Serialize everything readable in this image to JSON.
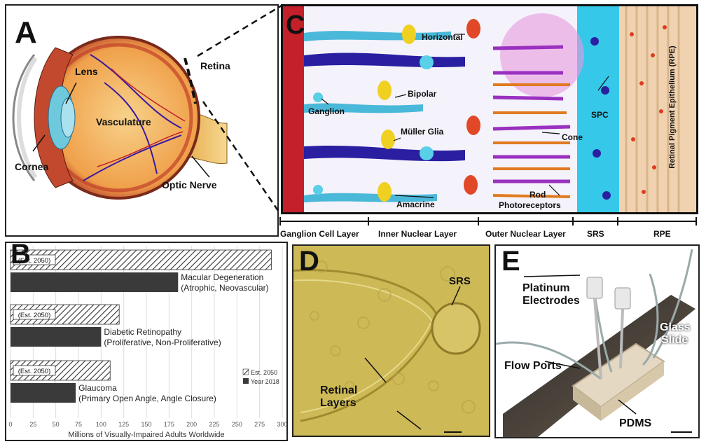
{
  "panels": {
    "a": {
      "letter": "A",
      "labels": {
        "lens": "Lens",
        "retina": "Retina",
        "vasculature": "Vasculature",
        "cornea": "Cornea",
        "optic_nerve": "Optic Nerve"
      }
    },
    "c": {
      "letter": "C",
      "labels": {
        "horizontal": "Horizontal",
        "ganglion": "Ganglion",
        "bipolar": "Bipolar",
        "muller": "Müller Glia",
        "amacrine": "Amacrine",
        "rod": "Rod",
        "photoreceptors": "Photoreceptors",
        "cone": "Cone",
        "spc": "SPC",
        "rpe_vertical": "Retinal Pigment Epithelium (RPE)"
      },
      "layers": [
        "Ganglion Cell Layer",
        "Inner Nuclear Layer",
        "Outer Nuclear Layer",
        "SRS",
        "RPE"
      ]
    },
    "b": {
      "letter": "B"
    },
    "d": {
      "letter": "D",
      "labels": {
        "srs": "SRS",
        "retinal": "Retinal",
        "layers": "Layers"
      }
    },
    "e": {
      "letter": "E",
      "labels": {
        "platinum": "Platinum",
        "electrodes": "Electrodes",
        "glass": "Glass",
        "slide": "Slide",
        "flow_ports": "Flow Ports",
        "pdms": "PDMS"
      }
    }
  },
  "chart_data": {
    "type": "bar",
    "orientation": "horizontal",
    "xlabel": "Millions of Visually-Impaired Adults Worldwide",
    "xlim": [
      0,
      300
    ],
    "xticks": [
      0,
      25,
      50,
      75,
      100,
      125,
      150,
      175,
      200,
      225,
      250,
      275,
      300
    ],
    "categories": [
      {
        "name": "Macular Degeneration",
        "sub": "(Atrophic, Neovascular)"
      },
      {
        "name": "Diabetic Retinopathy",
        "sub": "(Proliferative, Non-Proliferative)"
      },
      {
        "name": "Glaucoma",
        "sub": "(Primary Open Angle, Angle Closure)"
      }
    ],
    "series": [
      {
        "name": "Est. 2050",
        "values": [
          288,
          120,
          110
        ],
        "pattern": "hatch",
        "bar_label": "(Est. 2050)"
      },
      {
        "name": "Year 2018",
        "values": [
          185,
          100,
          72
        ],
        "color": "#3a3a3a"
      }
    ],
    "legend_position": "right",
    "grid": true
  }
}
